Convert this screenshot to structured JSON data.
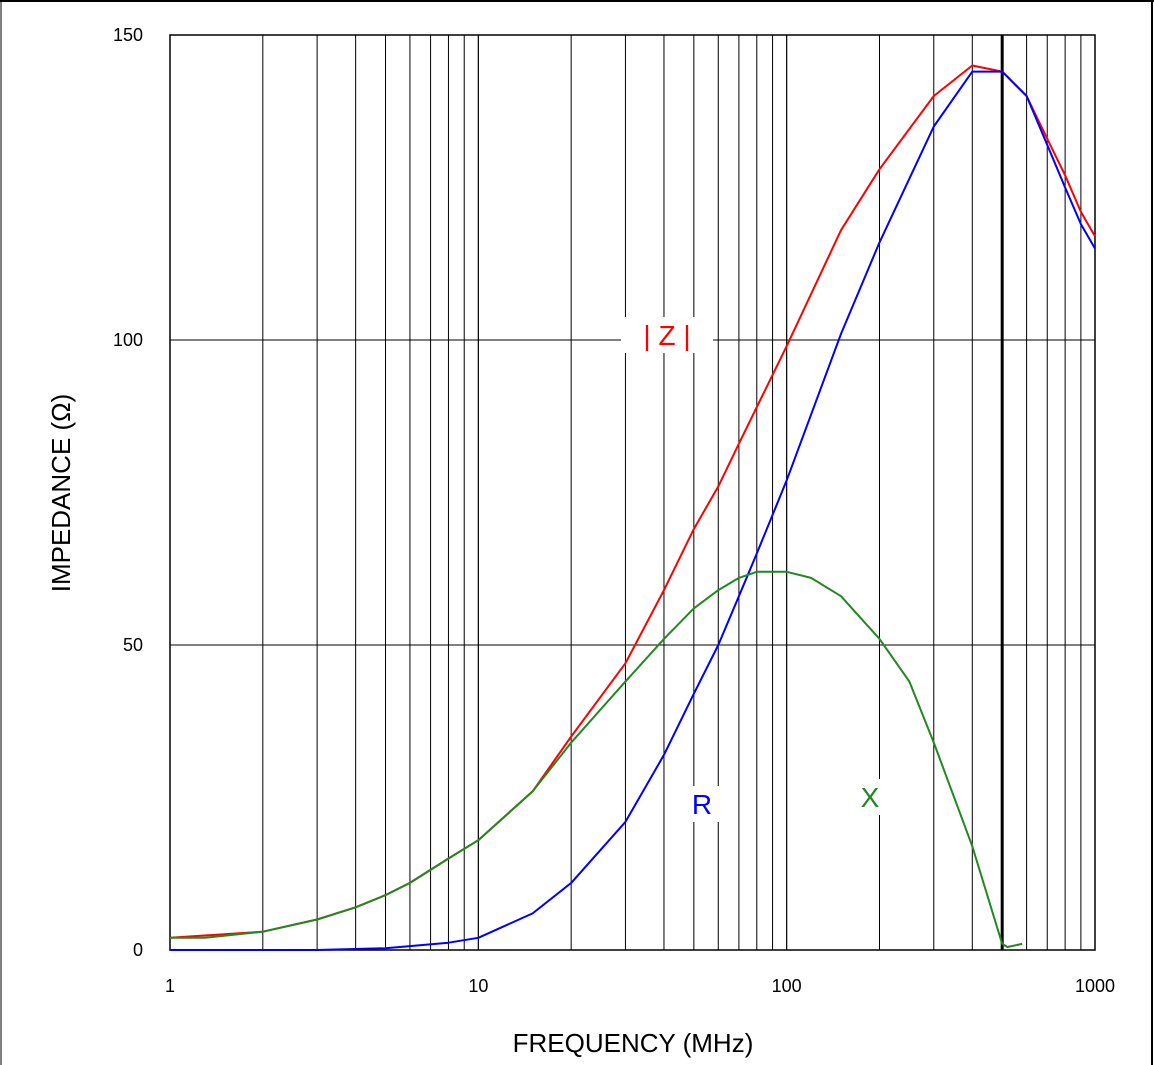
{
  "chart_data": {
    "type": "line",
    "xlabel": "FREQUENCY (MHz)",
    "ylabel": "IMPEDANCE (Ω)",
    "x_scale": "log",
    "xlim": [
      1,
      1000
    ],
    "ylim": [
      0,
      150
    ],
    "x_ticks": [
      1,
      10,
      100,
      1000
    ],
    "x_tick_labels": [
      "1",
      "10",
      "100",
      "1000"
    ],
    "y_ticks": [
      0,
      50,
      100,
      150
    ],
    "y_tick_labels": [
      "0",
      "50",
      "100",
      "150"
    ],
    "grid": true,
    "series": [
      {
        "name": "| Z |",
        "color": "#ff0000",
        "x": [
          1,
          2,
          3,
          4,
          5,
          6,
          8,
          10,
          15,
          20,
          30,
          40,
          50,
          60,
          70,
          80,
          100,
          150,
          200,
          300,
          400,
          500,
          600,
          700,
          800,
          900,
          1000
        ],
        "y": [
          2,
          3,
          5,
          7,
          9,
          11,
          15,
          18,
          26,
          35,
          47,
          59,
          69,
          76,
          83,
          89,
          99,
          118,
          128,
          140,
          145,
          144,
          140,
          133,
          127,
          121,
          117
        ]
      },
      {
        "name": "R",
        "color": "#0000ff",
        "x": [
          1,
          3,
          5,
          8,
          10,
          15,
          20,
          30,
          40,
          50,
          60,
          70,
          80,
          100,
          150,
          200,
          300,
          400,
          500,
          600,
          700,
          800,
          900,
          1000
        ],
        "y": [
          0,
          0,
          0.3,
          1.2,
          2,
          6,
          11,
          21,
          32,
          42,
          50,
          58,
          65,
          77,
          101,
          116,
          135,
          144,
          144,
          140,
          132,
          125,
          119,
          115
        ]
      },
      {
        "name": "X",
        "color": "#228822",
        "x": [
          1,
          1.3,
          2,
          3,
          4,
          5,
          6,
          8,
          10,
          15,
          20,
          30,
          40,
          50,
          60,
          70,
          80,
          100,
          120,
          150,
          200,
          250,
          300,
          400,
          500,
          520,
          580
        ],
        "y": [
          2,
          2,
          3,
          5,
          7,
          9,
          11,
          15,
          18,
          26,
          34,
          44,
          51,
          56,
          59,
          61,
          62,
          62,
          61,
          58,
          51,
          44,
          34,
          17,
          1,
          0.5,
          1
        ]
      }
    ],
    "annotations": [
      "| Z |",
      "R",
      "X"
    ]
  }
}
